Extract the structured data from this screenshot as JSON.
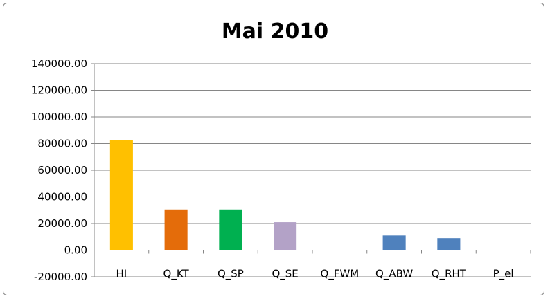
{
  "chart_data": {
    "type": "bar",
    "title": "Mai 2010",
    "xlabel": "",
    "ylabel": "",
    "categories": [
      "HI",
      "Q_KT",
      "Q_SP",
      "Q_SE",
      "Q_FWM",
      "Q_ABW",
      "Q_RHT",
      "P_el"
    ],
    "values": [
      82500,
      30500,
      30500,
      21000,
      0,
      11000,
      9000,
      0
    ],
    "colors": [
      "#FFC000",
      "#E46C0A",
      "#00B050",
      "#B3A2C7",
      "#4F81BD",
      "#4F81BD",
      "#4F81BD",
      "#4F81BD"
    ],
    "ylim": [
      -20000,
      140000
    ],
    "yticks": [
      {
        "value": 140000,
        "label": "140000.00"
      },
      {
        "value": 120000,
        "label": "120000.00"
      },
      {
        "value": 100000,
        "label": "100000.00"
      },
      {
        "value": 80000,
        "label": "80000.00"
      },
      {
        "value": 60000,
        "label": "60000.00"
      },
      {
        "value": 40000,
        "label": "40000.00"
      },
      {
        "value": 20000,
        "label": "20000.00"
      },
      {
        "value": 0,
        "label": "0.00"
      },
      {
        "value": -20000,
        "label": "-20000.00"
      }
    ],
    "grid": true,
    "legend": "none"
  }
}
